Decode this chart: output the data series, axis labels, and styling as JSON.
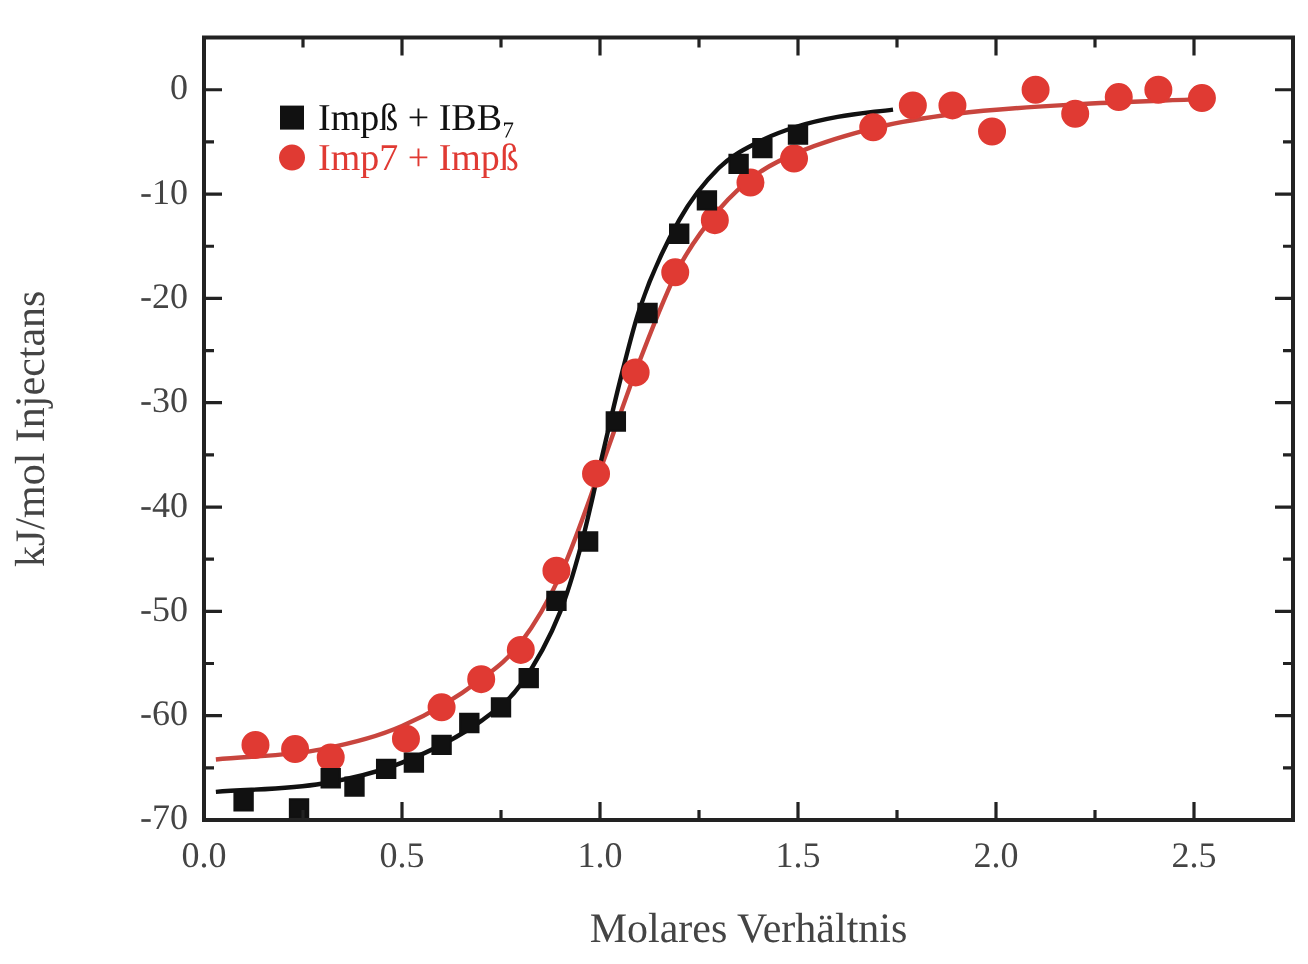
{
  "chart_data": {
    "type": "scatter",
    "xlabel": "Molares Verhältnis",
    "ylabel": "kJ/mol Injectans",
    "xlim": [
      0,
      2.75
    ],
    "xticks": [
      {
        "value": 0,
        "label": "0.0"
      },
      {
        "value": 0.25,
        "label": null
      },
      {
        "value": 0.5,
        "label": "0.5"
      },
      {
        "value": 0.75,
        "label": null
      },
      {
        "value": 1,
        "label": "1.0"
      },
      {
        "value": 1.25,
        "label": null
      },
      {
        "value": 1.5,
        "label": "1.5"
      },
      {
        "value": 1.75,
        "label": null
      },
      {
        "value": 2,
        "label": "2.0"
      },
      {
        "value": 2.25,
        "label": null
      },
      {
        "value": 2.5,
        "label": "2.5"
      }
    ],
    "ylim": [
      -70,
      5
    ],
    "yticks": [
      -70,
      {
        "value": -65,
        "label": null
      },
      -60,
      {
        "value": -55,
        "label": null
      },
      -50,
      {
        "value": -45,
        "label": null
      },
      -40,
      {
        "value": -35,
        "label": null
      },
      -30,
      {
        "value": -25,
        "label": null
      },
      -20,
      {
        "value": -15,
        "label": null
      },
      -10,
      {
        "value": -5,
        "label": null
      },
      0
    ],
    "grid": false,
    "legend": "top left",
    "series": [
      {
        "name": "Impß + IBB₇",
        "marker": "square",
        "color": "#111111",
        "x": [
          0.1,
          0.24,
          0.32,
          0.38,
          0.46,
          0.53,
          0.6,
          0.67,
          0.75,
          0.82,
          0.89,
          0.97,
          1.04,
          1.12,
          1.2,
          1.27,
          1.35,
          1.41,
          1.5
        ],
        "values": [
          -68.2,
          -68.9,
          -66.0,
          -66.8,
          -65.1,
          -64.5,
          -62.8,
          -60.7,
          -59.2,
          -56.4,
          -49.0,
          -43.3,
          -31.8,
          -21.4,
          -13.8,
          -10.6,
          -7.1,
          -5.6,
          -4.3
        ]
      },
      {
        "name": "Imp7 + Impß",
        "marker": "circle",
        "color": "#e03a33",
        "x": [
          0.13,
          0.23,
          0.32,
          0.51,
          0.6,
          0.7,
          0.8,
          0.89,
          0.99,
          1.09,
          1.19,
          1.29,
          1.38,
          1.49,
          1.69,
          1.79,
          1.89,
          1.99,
          2.1,
          2.2,
          2.31,
          2.41,
          2.52
        ],
        "values": [
          -62.8,
          -63.2,
          -64.0,
          -62.2,
          -59.2,
          -56.5,
          -53.7,
          -46.1,
          -36.8,
          -27.1,
          -17.5,
          -12.5,
          -8.9,
          -6.6,
          -3.6,
          -1.5,
          -1.5,
          -4.0,
          0.0,
          -2.3,
          -0.7,
          0.0,
          -0.8
        ]
      },
      {
        "type": "line",
        "marker": "none",
        "line_style": "solid",
        "color": "#111111",
        "x": [
          0.03,
          0.3,
          0.5,
          0.7,
          0.8,
          0.9,
          0.95,
          1.0,
          1.05,
          1.1,
          1.2,
          1.3,
          1.4,
          1.5,
          1.6,
          1.74
        ],
        "values": [
          -67.3,
          -66.5,
          -64.5,
          -60.5,
          -57,
          -50,
          -44,
          -36,
          -28,
          -21,
          -12.5,
          -7.5,
          -5,
          -3.5,
          -2.6,
          -1.9
        ]
      },
      {
        "type": "line",
        "marker": "none",
        "line_style": "solid",
        "color": "#c8453e",
        "x": [
          0.03,
          0.3,
          0.5,
          0.7,
          0.8,
          0.9,
          1.0,
          1.1,
          1.2,
          1.3,
          1.4,
          1.5,
          1.7,
          1.9,
          2.2,
          2.52
        ],
        "values": [
          -64.2,
          -63.2,
          -61,
          -56.5,
          -53,
          -46.5,
          -36.5,
          -26,
          -17,
          -11.5,
          -8,
          -6,
          -3.6,
          -2.3,
          -1.4,
          -0.9
        ]
      }
    ]
  }
}
